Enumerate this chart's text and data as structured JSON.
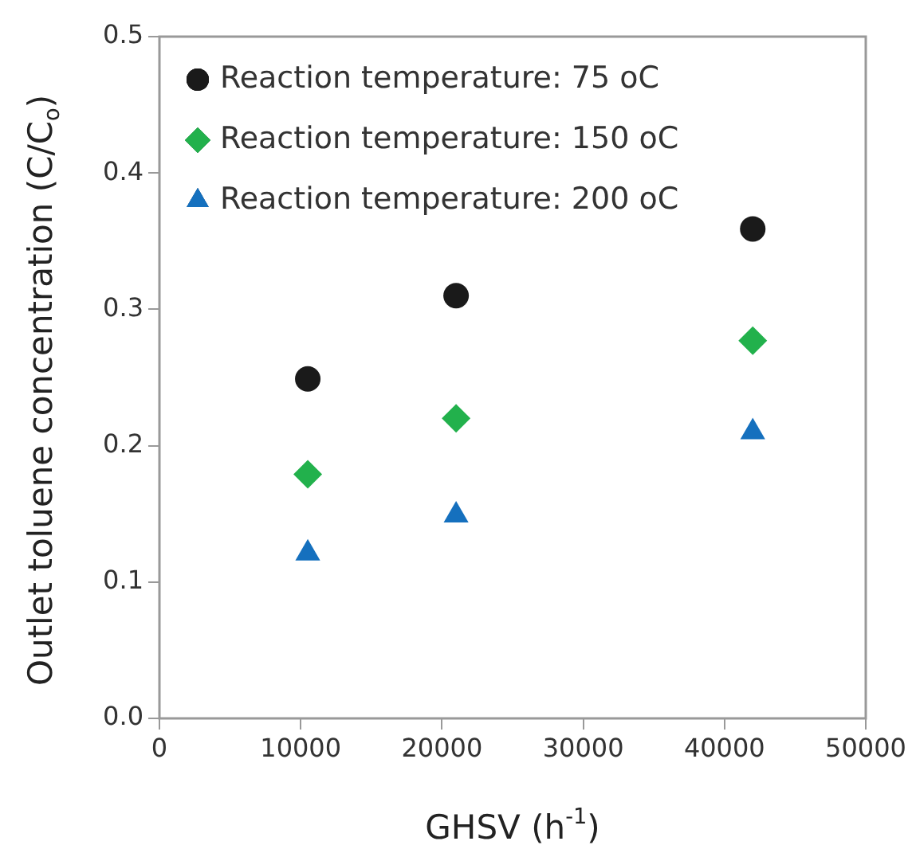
{
  "chart_data": {
    "type": "scatter",
    "xlabel": "GHSV (h$^{-1}$)",
    "ylabel": "Outlet toluene concentration (C/C$_{o}$)",
    "xlim": [
      0,
      50000
    ],
    "xticks": [
      0,
      10000,
      20000,
      30000,
      40000,
      50000
    ],
    "ylim": [
      0,
      0.5
    ],
    "yticks": [
      {
        "value": 0,
        "label": "0.0"
      },
      0.1,
      0.2,
      0.3,
      0.4,
      0.5
    ],
    "grid": false,
    "legend": "top left",
    "series": [
      {
        "name": "Reaction temperature: 75 oC",
        "color": "#1a1a1a",
        "marker": "circle",
        "x": [
          10500,
          21000,
          42000
        ],
        "values": [
          0.249,
          0.31,
          0.359
        ]
      },
      {
        "name": "Reaction temperature: 150 oC",
        "color": "#22b14c",
        "marker": "diamond",
        "x": [
          10500,
          21000,
          42000
        ],
        "values": [
          0.179,
          0.22,
          0.277
        ]
      },
      {
        "name": "Reaction temperature: 200 oC",
        "color": "#1570be",
        "marker": "triangle",
        "x": [
          10500,
          21000,
          42000
        ],
        "values": [
          0.121,
          0.149,
          0.21
        ]
      }
    ]
  }
}
